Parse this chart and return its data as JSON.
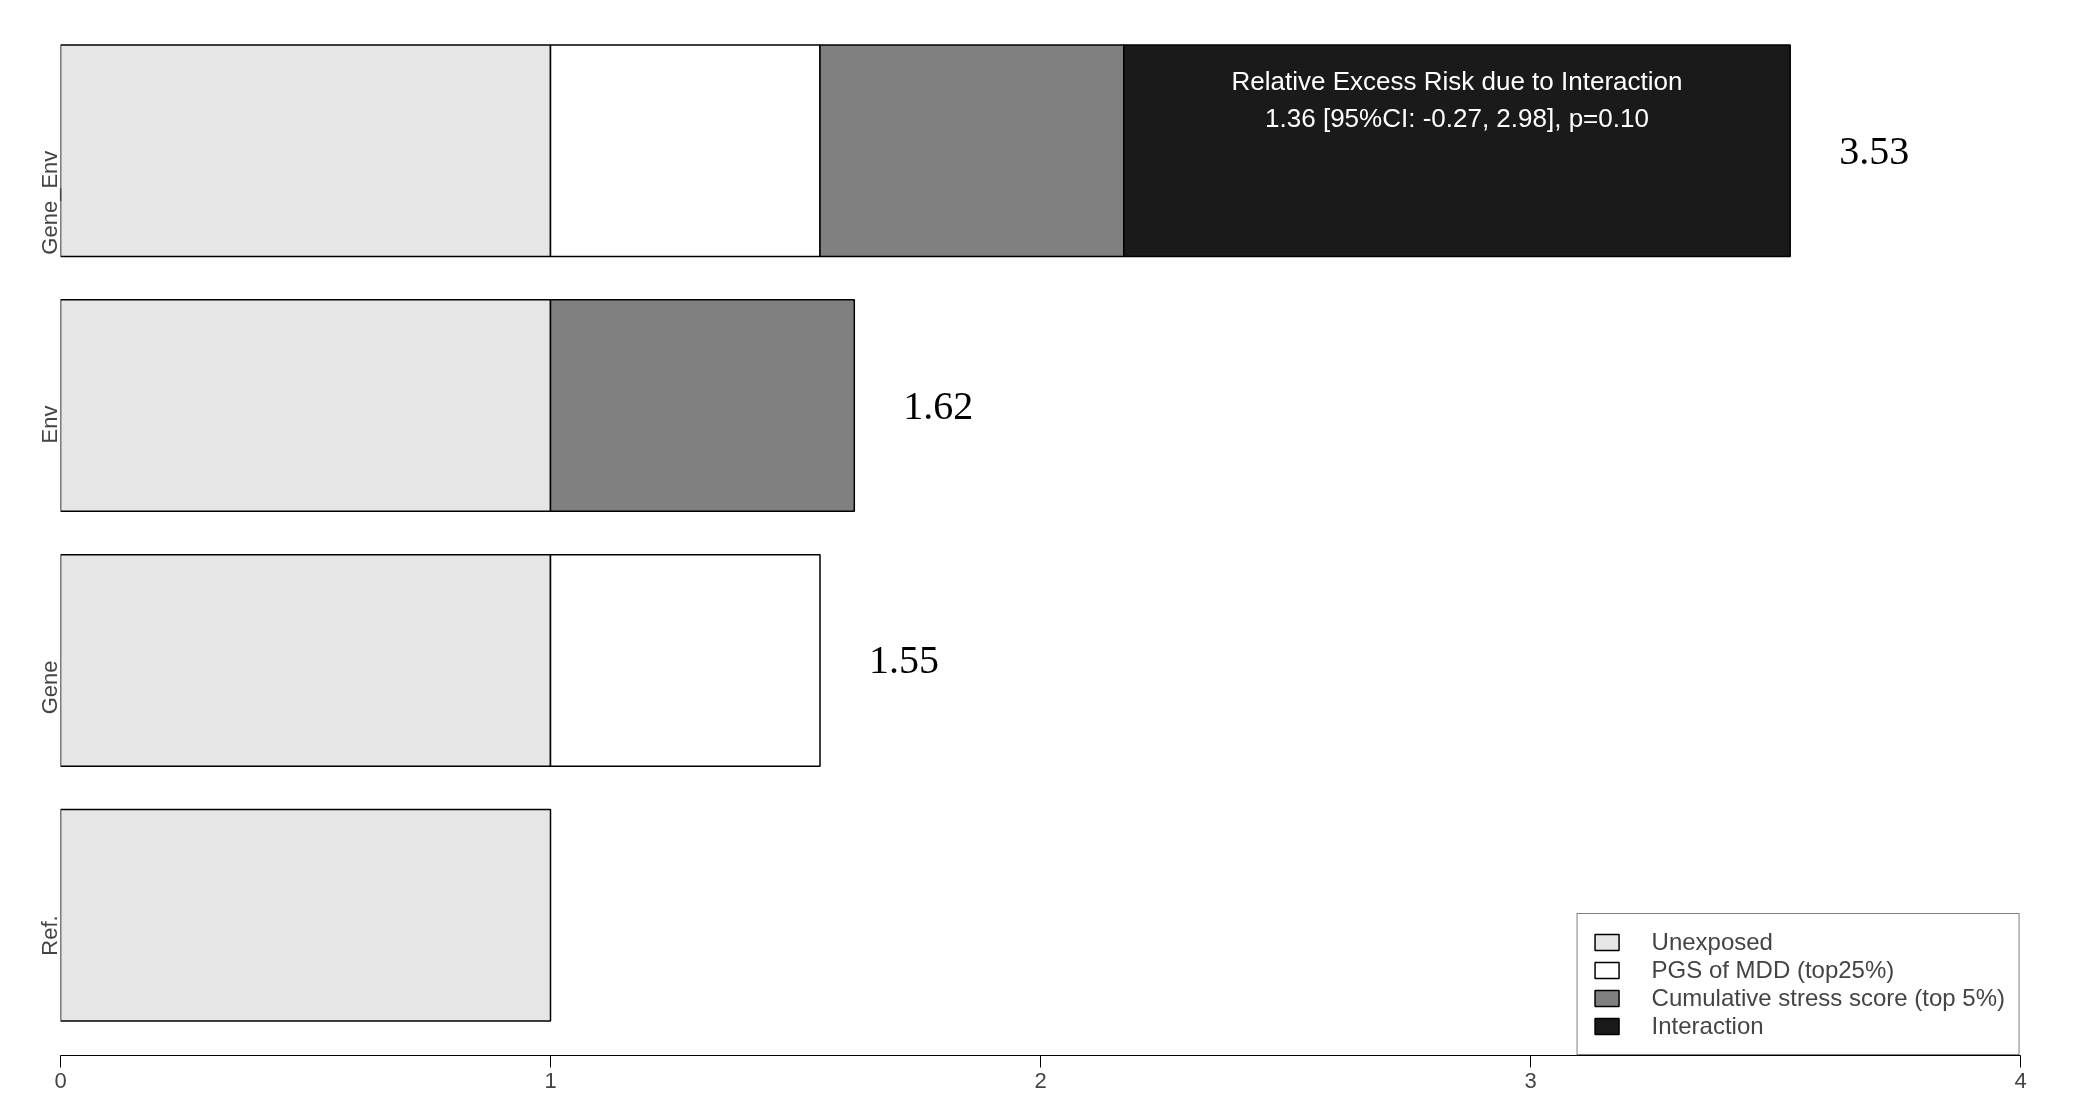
{
  "chart_data": {
    "type": "bar",
    "orientation": "horizontal",
    "stacked": true,
    "categories": [
      "Gene_Env",
      "Env",
      "Gene",
      "Ref."
    ],
    "series": [
      {
        "name": "Unexposed",
        "color": "#e6e6e6",
        "values": [
          1,
          1,
          1,
          1
        ]
      },
      {
        "name": "PGS of MDD (top25%)",
        "color": "#ffffff",
        "values": [
          0.55,
          null,
          0.55,
          null
        ]
      },
      {
        "name": "Cumulative stress score (top 5%)",
        "color": "#808080",
        "values": [
          0.62,
          0.62,
          null,
          null
        ]
      },
      {
        "name": "Interaction",
        "color": "#1a1a1a",
        "values": [
          1.36,
          null,
          null,
          null
        ]
      }
    ],
    "totals": [
      "3.53",
      "1.62",
      "1.55",
      null
    ],
    "annotations": [
      "Relative Excess Risk due to Interaction\n1.36 [95%CI: -0.27, 2.98], p=0.10"
    ],
    "xlim": [
      0,
      4
    ],
    "xticks": [
      0,
      1,
      2,
      3,
      4
    ],
    "grid": false,
    "legend": "bottom right"
  }
}
